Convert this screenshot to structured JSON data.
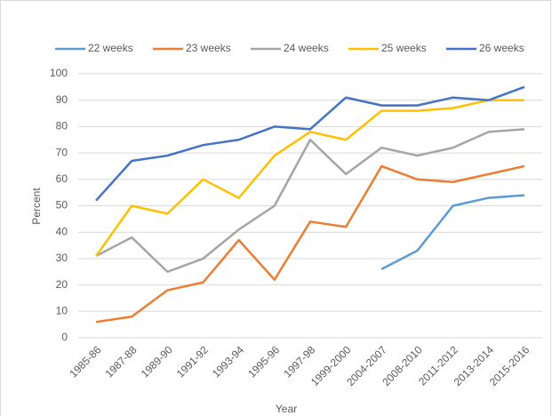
{
  "chart_data": {
    "type": "line",
    "categories": [
      "1985-86",
      "1987-88",
      "1989-90",
      "1991-92",
      "1993-94",
      "1995-96",
      "1997-98",
      "1999-2000",
      "2004-2007",
      "2008-2010",
      "2011-2012",
      "2013-2014",
      "2015-2016"
    ],
    "series": [
      {
        "name": "22 weeks",
        "color": "#5b9bd5",
        "values": [
          null,
          null,
          null,
          null,
          null,
          null,
          null,
          null,
          26,
          33,
          50,
          53,
          54
        ]
      },
      {
        "name": "23 weeks",
        "color": "#ed7d31",
        "values": [
          6,
          8,
          18,
          21,
          37,
          22,
          44,
          42,
          65,
          60,
          59,
          62,
          65
        ]
      },
      {
        "name": "24 weeks",
        "color": "#a5a5a5",
        "values": [
          31,
          38,
          25,
          30,
          41,
          50,
          75,
          62,
          72,
          69,
          72,
          78,
          79
        ]
      },
      {
        "name": "25 weeks",
        "color": "#ffc000",
        "values": [
          31,
          50,
          47,
          60,
          53,
          69,
          78,
          75,
          86,
          86,
          87,
          90,
          90
        ]
      },
      {
        "name": "26 weeks",
        "color": "#4472c4",
        "values": [
          52,
          67,
          69,
          73,
          75,
          80,
          79,
          91,
          88,
          88,
          91,
          90,
          95
        ]
      }
    ],
    "x_label": "Year",
    "y_label": "Percent",
    "ylim": [
      0,
      100
    ],
    "yticks": [
      0,
      10,
      20,
      30,
      40,
      50,
      60,
      70,
      80,
      90,
      100
    ],
    "grid": true,
    "legend": "top"
  }
}
